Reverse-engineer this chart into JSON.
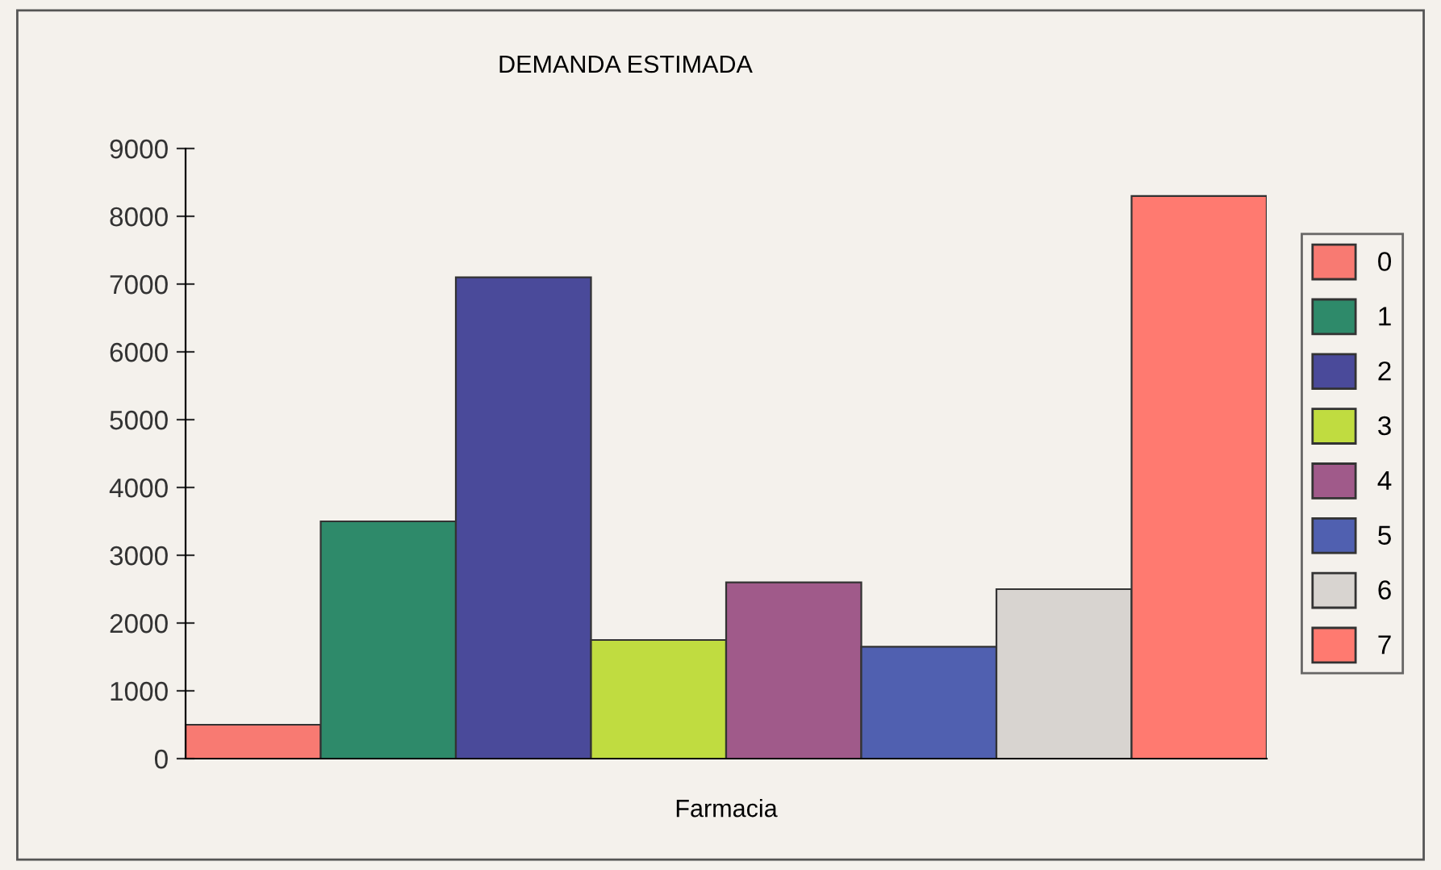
{
  "chart_data": {
    "type": "bar",
    "title": "DEMANDA ESTIMADA",
    "xlabel": "Farmacia",
    "categories": [
      null
    ],
    "series": [
      {
        "name": "0",
        "color": "#f87a72",
        "values": [
          500
        ]
      },
      {
        "name": "1",
        "color": "#2e8a6a",
        "values": [
          3500
        ]
      },
      {
        "name": "2",
        "color": "#4a4a9a",
        "values": [
          7100
        ]
      },
      {
        "name": "3",
        "color": "#c0dc40",
        "values": [
          1750
        ]
      },
      {
        "name": "4",
        "color": "#a05a8a",
        "values": [
          2600
        ]
      },
      {
        "name": "5",
        "color": "#5060b0",
        "values": [
          1650
        ]
      },
      {
        "name": "6",
        "color": "#d8d4d0",
        "values": [
          2500
        ]
      },
      {
        "name": "7",
        "color": "#ff7a70",
        "values": [
          8300
        ]
      }
    ],
    "ylim": [
      0,
      9000
    ],
    "yticks": [
      0,
      1000,
      2000,
      3000,
      4000,
      5000,
      6000,
      7000,
      8000,
      9000
    ],
    "grid": false,
    "legend": "right",
    "tick_labels": "y"
  }
}
